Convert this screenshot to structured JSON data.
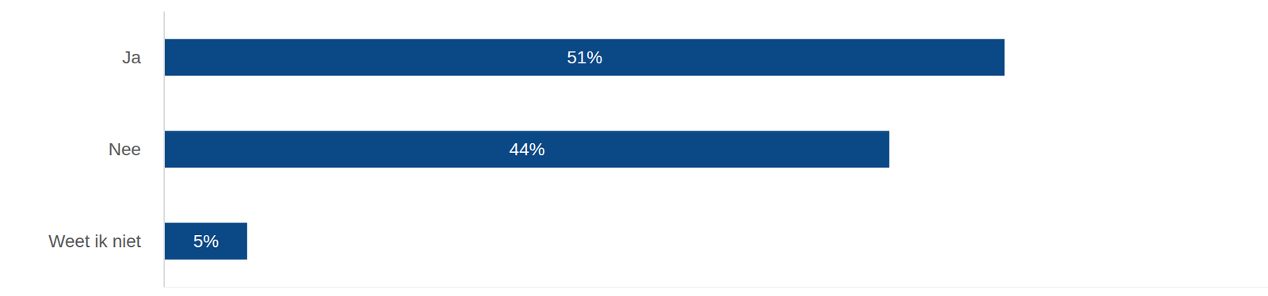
{
  "chart_data": {
    "type": "bar",
    "orientation": "horizontal",
    "categories": [
      "Ja",
      "Nee",
      "Weet ik niet"
    ],
    "values": [
      51,
      44,
      5
    ],
    "value_labels": [
      "51%",
      "44%",
      "5%"
    ],
    "data_labels": true,
    "color": "#0b4886",
    "xlim": [
      0,
      67
    ],
    "tick_labels": "y",
    "grid": false
  }
}
